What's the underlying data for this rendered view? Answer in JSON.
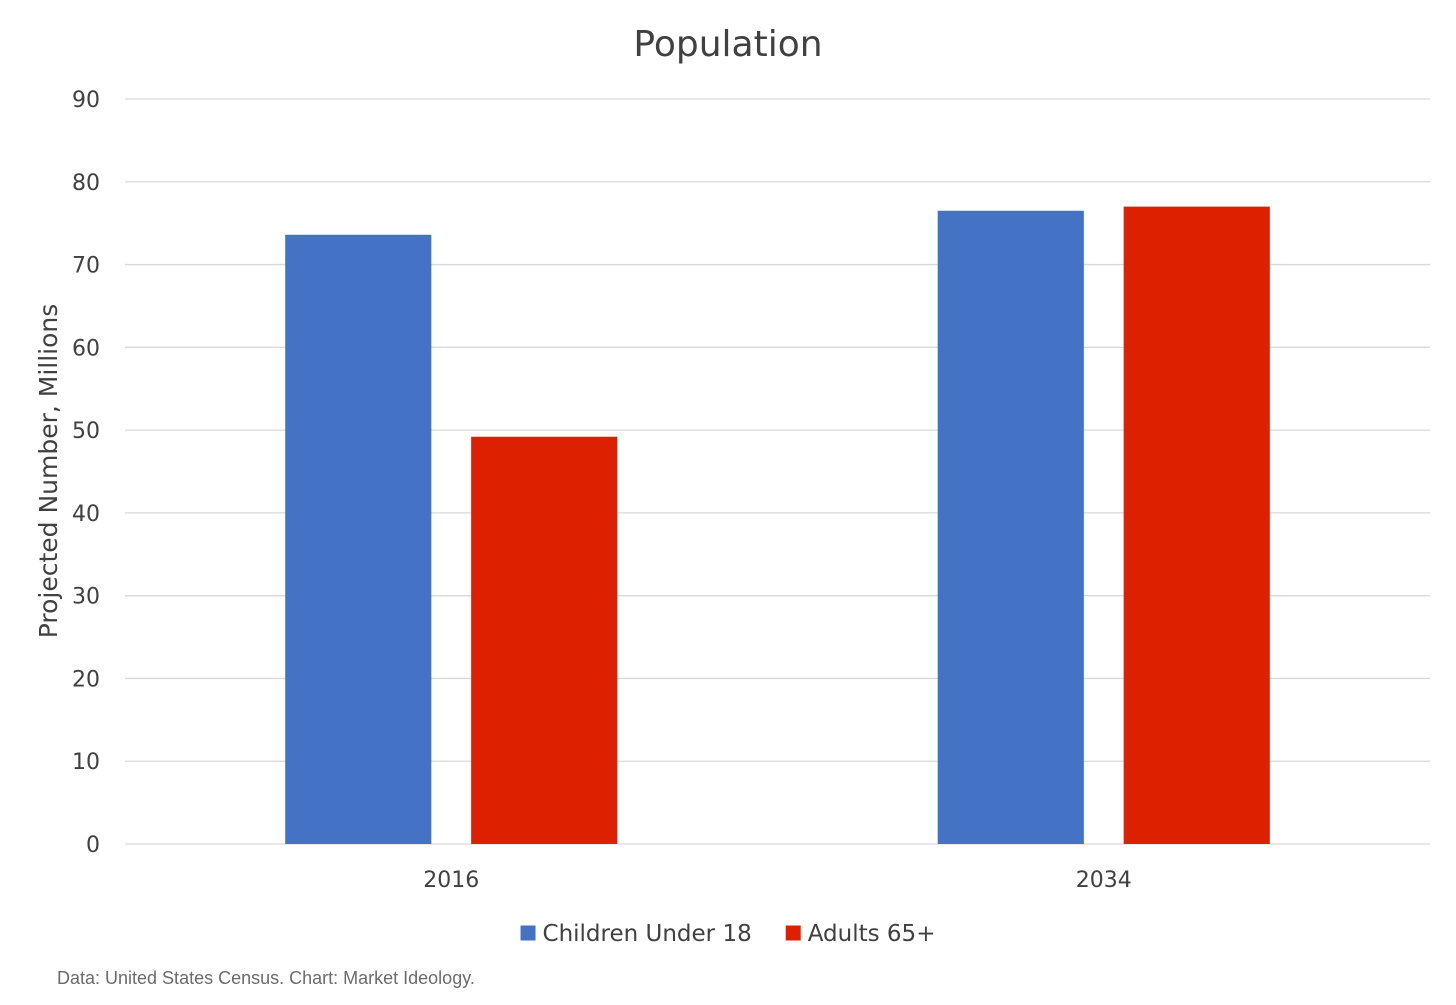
{
  "chart_data": {
    "type": "bar",
    "title": "Population",
    "xlabel": "",
    "ylabel": "Projected Number, Millions",
    "categories": [
      "2016",
      "2034"
    ],
    "series": [
      {
        "name": "Children Under 18",
        "color": "#4472C4",
        "values": [
          73.6,
          76.5
        ]
      },
      {
        "name": "Adults 65+",
        "color": "#DD2000",
        "values": [
          49.2,
          77.0
        ]
      }
    ],
    "ylim": [
      0,
      90
    ],
    "yticks": [
      0,
      10,
      20,
      30,
      40,
      50,
      60,
      70,
      80,
      90
    ],
    "grid": true,
    "legend_position": "bottom"
  },
  "footer": {
    "source_note": "Data: United States Census. Chart: Market Ideology."
  }
}
